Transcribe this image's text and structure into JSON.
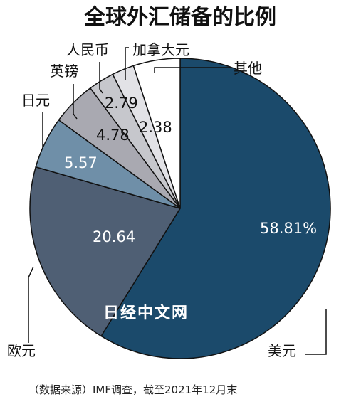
{
  "chart_data": {
    "type": "pie",
    "title": "全球外汇储备的比例",
    "categories": [
      "美元",
      "欧元",
      "日元",
      "英镑",
      "人民币",
      "加拿大元",
      "其他"
    ],
    "values": [
      58.81,
      20.64,
      5.57,
      4.78,
      2.79,
      2.38,
      5.03
    ],
    "value_labels": [
      "58.81%",
      "20.64",
      "5.57",
      "4.78",
      "2.79",
      "2.38",
      ""
    ],
    "colors": [
      "#1b4a6b",
      "#4f5f74",
      "#6f8fa8",
      "#a9a9b1",
      "#c6c7cc",
      "#e2e2e6",
      "#ffffff"
    ],
    "source": "（数据来源）IMF调查，截至2021年12月末",
    "watermark": "日经中文网"
  }
}
